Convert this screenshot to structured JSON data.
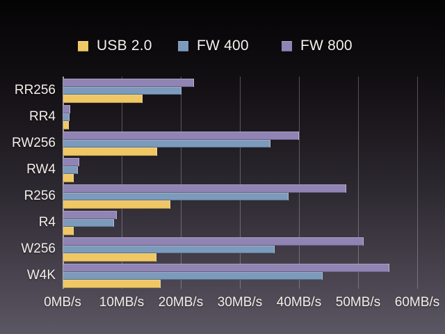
{
  "chart_data": {
    "type": "bar",
    "orientation": "horizontal",
    "title": "",
    "xlabel": "MB/s",
    "ylabel": "",
    "xlim": [
      0,
      60
    ],
    "grid": true,
    "legend_position": "top",
    "bar_display_order": "FW 800 top, FW 400 middle, USB 2.0 bottom",
    "categories": [
      "RR256",
      "RR4",
      "RW256",
      "RW4",
      "R256",
      "R4",
      "W256",
      "W4K"
    ],
    "x_tick_labels": [
      "0MB/s",
      "10MB/s",
      "20MB/s",
      "30MB/s",
      "40MB/s",
      "50MB/s",
      "60MB/s"
    ],
    "series": [
      {
        "name": "USB 2.0",
        "color": "#efc765",
        "values": [
          13.3,
          0.8,
          15.8,
          1.6,
          18.0,
          1.6,
          15.6,
          16.4
        ]
      },
      {
        "name": "FW 400",
        "color": "#7c9abc",
        "values": [
          19.9,
          0.9,
          34.9,
          2.3,
          38.0,
          8.5,
          35.6,
          43.8
        ]
      },
      {
        "name": "FW 800",
        "color": "#9084b4",
        "values": [
          22.0,
          1.1,
          39.8,
          2.6,
          47.8,
          8.9,
          50.7,
          55.1
        ]
      }
    ]
  },
  "style_colors": {
    "background_top": "#050405",
    "background_bottom": "#5b5763",
    "text": "#f2efeb",
    "gridline": "rgba(225,225,230,0.32)"
  }
}
